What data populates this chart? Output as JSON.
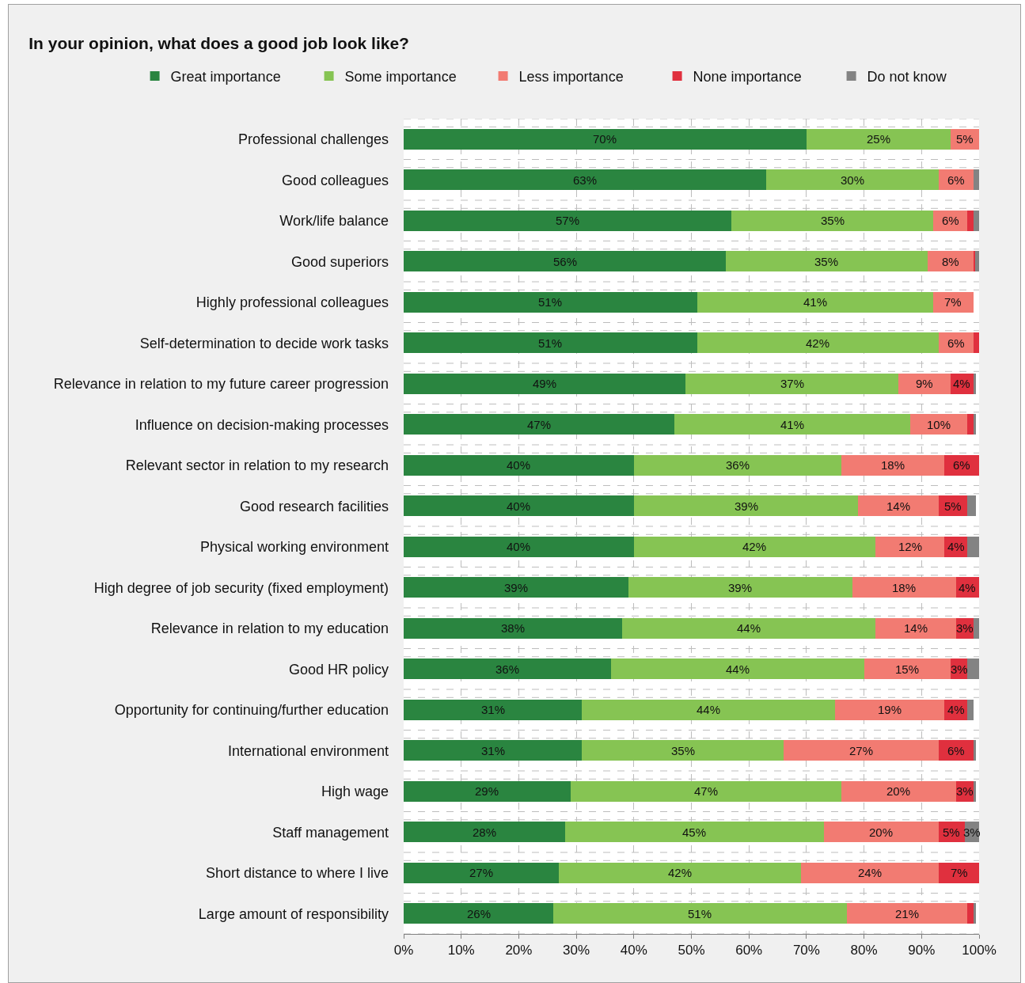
{
  "chart_data": {
    "type": "bar",
    "orientation": "horizontal",
    "stacked": true,
    "title": "In your opinion, what does a good job look like?",
    "categories": [
      "Professional challenges",
      "Good colleagues",
      "Work/life balance",
      "Good superiors",
      "Highly professional colleagues",
      "Self-determination to decide work tasks",
      "Relevance in relation to my future career progression",
      "Influence on decision-making processes",
      "Relevant sector in relation to my research",
      "Good research facilities",
      "Physical working environment",
      "High degree of job security (fixed employment)",
      "Relevance in relation to my education",
      "Good HR policy",
      "Opportunity for continuing/further education",
      "International environment",
      "High wage",
      "Staff management",
      "Short distance to where I live",
      "Large amount of responsibility"
    ],
    "series": [
      {
        "name": "Great importance",
        "color": "#2a8540",
        "values": [
          70,
          63,
          57,
          56,
          51,
          51,
          49,
          47,
          40,
          40,
          40,
          39,
          38,
          36,
          31,
          31,
          29,
          28,
          27,
          26
        ],
        "value_labels": [
          "70%",
          "63%",
          "57%",
          "56%",
          "51%",
          "51%",
          "49%",
          "47%",
          "40%",
          "40%",
          "40%",
          "39%",
          "38%",
          "36%",
          "31%",
          "31%",
          "29%",
          "28%",
          "27%",
          "26%"
        ]
      },
      {
        "name": "Some importance",
        "color": "#86c453",
        "values": [
          25,
          30,
          35,
          35,
          41,
          42,
          37,
          41,
          36,
          39,
          42,
          39,
          44,
          44,
          44,
          35,
          47,
          45,
          42,
          51
        ],
        "value_labels": [
          "25%",
          "30%",
          "35%",
          "35%",
          "41%",
          "42%",
          "37%",
          "41%",
          "36%",
          "39%",
          "42%",
          "39%",
          "44%",
          "44%",
          "44%",
          "35%",
          "47%",
          "45%",
          "42%",
          "51%"
        ]
      },
      {
        "name": "Less importance",
        "color": "#f27b72",
        "values": [
          5,
          6,
          6,
          8,
          7,
          6,
          9,
          10,
          18,
          14,
          12,
          18,
          14,
          15,
          19,
          27,
          20,
          20,
          24,
          21
        ],
        "value_labels": [
          "5%",
          "6%",
          "6%",
          "8%",
          "7%",
          "6%",
          "9%",
          "10%",
          "18%",
          "14%",
          "12%",
          "18%",
          "14%",
          "15%",
          "19%",
          "27%",
          "20%",
          "20%",
          "24%",
          "21%"
        ]
      },
      {
        "name": "None importance",
        "color": "#e0303e",
        "values": [
          null,
          null,
          1,
          0.3,
          null,
          1,
          4,
          1,
          6,
          5,
          4,
          4,
          3,
          3,
          4,
          6,
          3,
          4.5,
          7,
          1
        ],
        "value_labels": [
          null,
          null,
          null,
          null,
          null,
          null,
          "4%",
          null,
          "6%",
          "5%",
          "4%",
          "4%",
          "3%",
          "3%",
          "4%",
          "6%",
          "3%",
          "5%",
          "7%",
          null
        ]
      },
      {
        "name": "Do not know",
        "color": "#838383",
        "values": [
          null,
          1,
          1,
          0.7,
          null,
          null,
          0.5,
          0.5,
          null,
          1.5,
          2,
          null,
          1,
          2,
          1,
          0.5,
          0.5,
          2.5,
          null,
          0.5
        ],
        "value_labels": [
          null,
          null,
          null,
          null,
          null,
          null,
          null,
          null,
          null,
          null,
          null,
          null,
          null,
          null,
          null,
          null,
          null,
          "3%",
          null,
          null
        ]
      }
    ],
    "xlim": [
      0,
      100
    ],
    "xticks": [
      {
        "value": 0,
        "label": "0%"
      },
      {
        "value": 10,
        "label": "10%"
      },
      {
        "value": 20,
        "label": "20%"
      },
      {
        "value": 30,
        "label": "30%"
      },
      {
        "value": 40,
        "label": "40%"
      },
      {
        "value": 50,
        "label": "50%"
      },
      {
        "value": 60,
        "label": "60%"
      },
      {
        "value": 70,
        "label": "70%"
      },
      {
        "value": 80,
        "label": "80%"
      },
      {
        "value": 90,
        "label": "90%"
      },
      {
        "value": 100,
        "label": "100%"
      }
    ],
    "grid": true,
    "legend": "top"
  }
}
